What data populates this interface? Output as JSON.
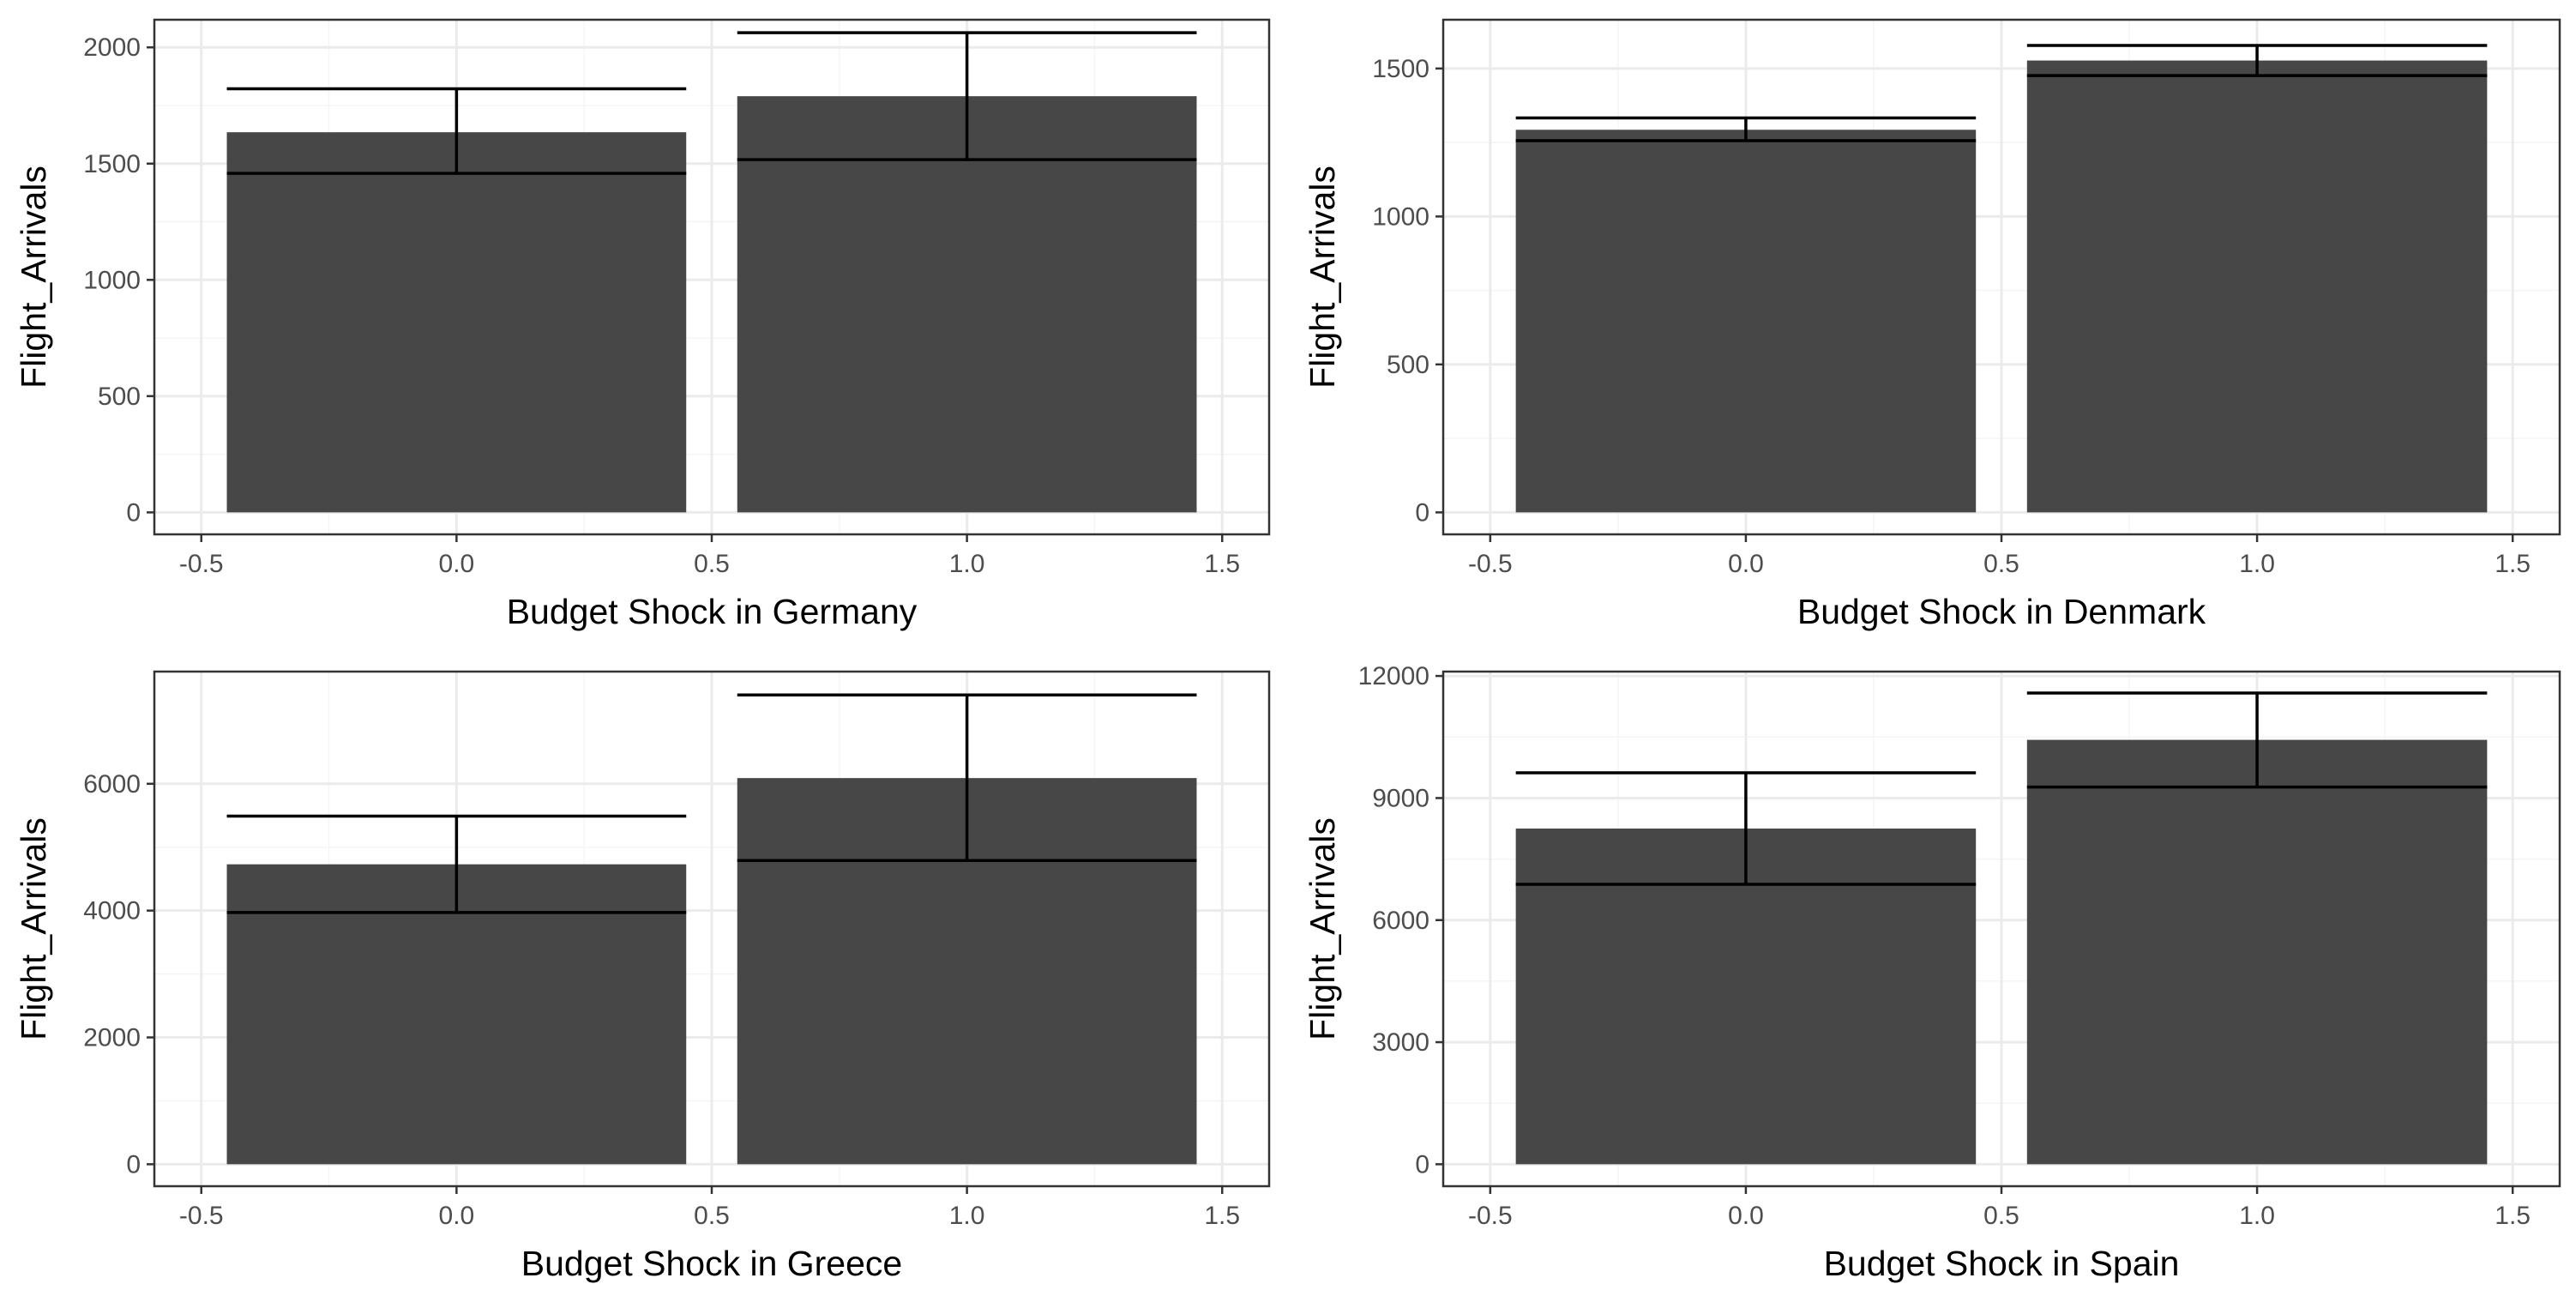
{
  "colors": {
    "bar": "#474747",
    "errorbar": "#000000",
    "grid_major": "#ebebeb",
    "grid_minor": "#f5f5f5",
    "panel_border": "#333333",
    "background": "#ffffff"
  },
  "chart_data": [
    {
      "type": "bar",
      "xlabel": "Budget Shock in Germany",
      "ylabel": "Flight_Arrivals",
      "x": [
        0,
        1
      ],
      "values": [
        1635,
        1790
      ],
      "error_low": [
        1458,
        1517
      ],
      "error_high": [
        1822,
        2063
      ],
      "xlim": [
        -0.5,
        1.5
      ],
      "ylim": [
        0,
        2100
      ],
      "x_ticks": [
        -0.5,
        0.0,
        0.5,
        1.0,
        1.5
      ],
      "x_tick_labels": [
        "-0.5",
        "0.0",
        "0.5",
        "1.0",
        "1.5"
      ],
      "y_ticks": [
        0,
        500,
        1000,
        1500,
        2000
      ],
      "y_tick_labels": [
        "0",
        "500",
        "1000",
        "1500",
        "2000"
      ],
      "grid": true,
      "legend": "none"
    },
    {
      "type": "bar",
      "xlabel": "Budget Shock in Denmark",
      "ylabel": "Flight_Arrivals",
      "x": [
        0,
        1
      ],
      "values": [
        1293,
        1527
      ],
      "error_low": [
        1256,
        1476
      ],
      "error_high": [
        1333,
        1578
      ],
      "xlim": [
        -0.5,
        1.5
      ],
      "ylim": [
        0,
        1650
      ],
      "x_ticks": [
        -0.5,
        0.0,
        0.5,
        1.0,
        1.5
      ],
      "x_tick_labels": [
        "-0.5",
        "0.0",
        "0.5",
        "1.0",
        "1.5"
      ],
      "y_ticks": [
        0,
        500,
        1000,
        1500
      ],
      "y_tick_labels": [
        "0",
        "500",
        "1000",
        "1500"
      ],
      "grid": true,
      "legend": "none"
    },
    {
      "type": "bar",
      "xlabel": "Budget Shock in Greece",
      "ylabel": "Flight_Arrivals",
      "x": [
        0,
        1
      ],
      "values": [
        4730,
        6090
      ],
      "error_low": [
        3970,
        4790
      ],
      "error_high": [
        5490,
        7400
      ],
      "xlim": [
        -0.5,
        1.5
      ],
      "ylim": [
        0,
        7700
      ],
      "x_ticks": [
        -0.5,
        0.0,
        0.5,
        1.0,
        1.5
      ],
      "x_tick_labels": [
        "-0.5",
        "0.0",
        "0.5",
        "1.0",
        "1.5"
      ],
      "y_ticks": [
        0,
        2000,
        4000,
        6000
      ],
      "y_tick_labels": [
        "0",
        "2000",
        "4000",
        "6000"
      ],
      "grid": true,
      "legend": "none"
    },
    {
      "type": "bar",
      "xlabel": "Budget Shock in Spain",
      "ylabel": "Flight_Arrivals",
      "x": [
        0,
        1
      ],
      "values": [
        8250,
        10430
      ],
      "error_low": [
        6880,
        9270
      ],
      "error_high": [
        9620,
        11580
      ],
      "xlim": [
        -0.5,
        1.5
      ],
      "ylim": [
        0,
        12000
      ],
      "x_ticks": [
        -0.5,
        0.0,
        0.5,
        1.0,
        1.5
      ],
      "x_tick_labels": [
        "-0.5",
        "0.0",
        "0.5",
        "1.0",
        "1.5"
      ],
      "y_ticks": [
        0,
        3000,
        6000,
        9000,
        12000
      ],
      "y_tick_labels": [
        "0",
        "3000",
        "6000",
        "9000",
        "12000"
      ],
      "grid": true,
      "legend": "none"
    }
  ]
}
